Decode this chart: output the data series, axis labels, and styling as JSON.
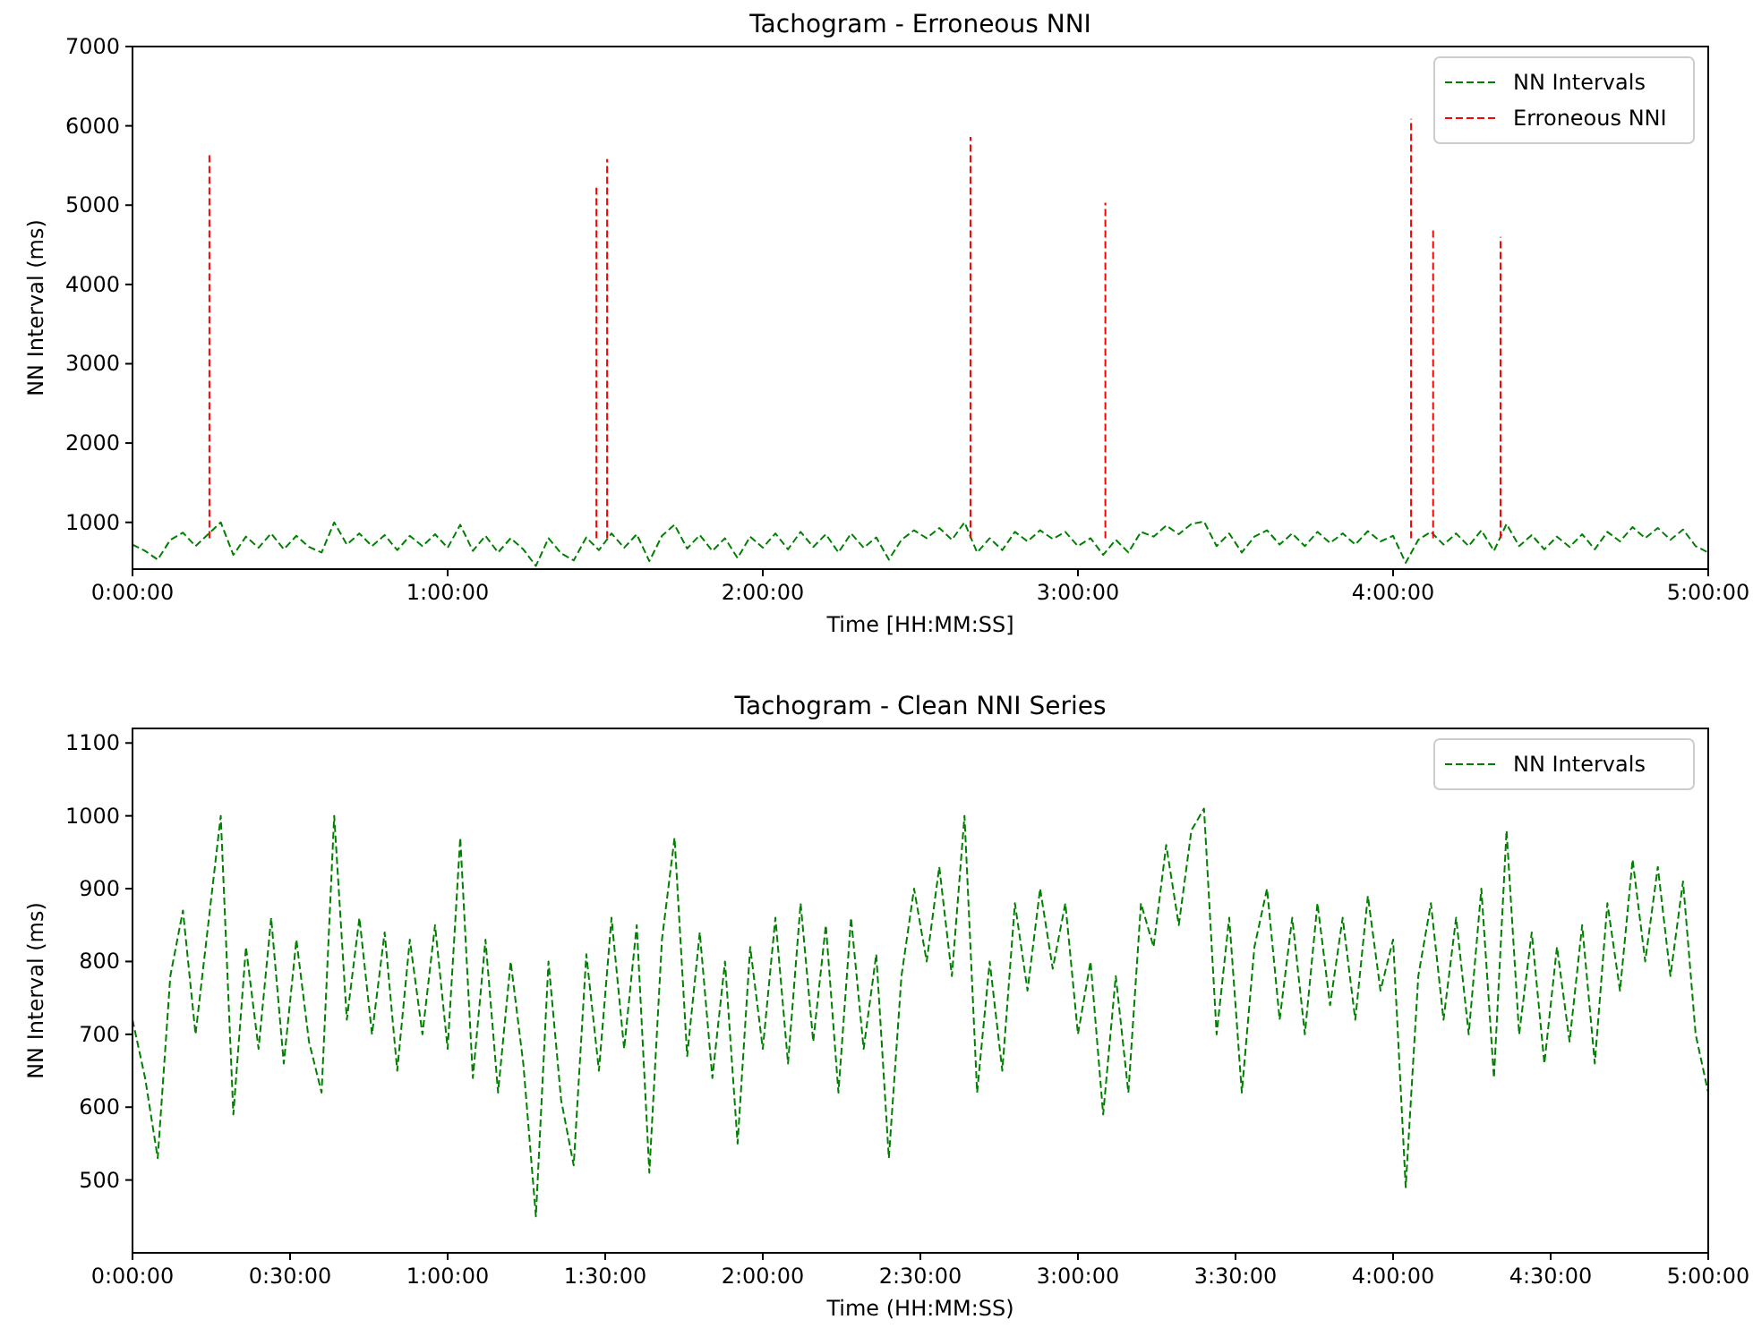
{
  "chart_data": [
    {
      "type": "line",
      "title": "Tachogram - Erroneous NNI",
      "xlabel": "Time [HH:MM:SS]",
      "ylabel": "NN Interval (ms)",
      "xlim": [
        0,
        5
      ],
      "xticks": [
        {
          "value": 0,
          "label": "0:00:00"
        },
        {
          "value": 1,
          "label": "1:00:00"
        },
        {
          "value": 2,
          "label": "2:00:00"
        },
        {
          "value": 3,
          "label": "3:00:00"
        },
        {
          "value": 4,
          "label": "4:00:00"
        },
        {
          "value": 5,
          "label": "5:00:00"
        }
      ],
      "ylim": [
        410,
        7000
      ],
      "yticks": [
        1000,
        2000,
        3000,
        4000,
        5000,
        6000,
        7000
      ],
      "grid": false,
      "legend": "top right",
      "line_style": "dashed",
      "x": [
        0,
        0.04,
        0.08,
        0.12,
        0.16,
        0.2,
        0.24,
        0.28,
        0.32,
        0.36,
        0.4,
        0.44,
        0.48,
        0.52,
        0.56,
        0.6,
        0.64,
        0.68,
        0.72,
        0.76,
        0.8,
        0.84,
        0.88,
        0.92,
        0.96,
        1,
        1.04,
        1.08,
        1.12,
        1.16,
        1.2,
        1.24,
        1.28,
        1.32,
        1.36,
        1.4,
        1.44,
        1.48,
        1.52,
        1.56,
        1.6,
        1.64,
        1.68,
        1.72,
        1.76,
        1.8,
        1.84,
        1.88,
        1.92,
        1.96,
        2,
        2.04,
        2.08,
        2.12,
        2.16,
        2.2,
        2.24,
        2.28,
        2.32,
        2.36,
        2.4,
        2.44,
        2.48,
        2.52,
        2.56,
        2.6,
        2.64,
        2.68,
        2.72,
        2.76,
        2.8,
        2.84,
        2.88,
        2.92,
        2.96,
        3,
        3.04,
        3.08,
        3.12,
        3.16,
        3.2,
        3.24,
        3.28,
        3.32,
        3.36,
        3.4,
        3.44,
        3.48,
        3.52,
        3.56,
        3.6,
        3.64,
        3.68,
        3.72,
        3.76,
        3.8,
        3.84,
        3.88,
        3.92,
        3.96,
        4,
        4.04,
        4.08,
        4.12,
        4.16,
        4.2,
        4.24,
        4.28,
        4.32,
        4.36,
        4.4,
        4.44,
        4.48,
        4.52,
        4.56,
        4.6,
        4.64,
        4.68,
        4.72,
        4.76,
        4.8,
        4.84,
        4.88,
        4.92,
        4.96,
        5
      ],
      "series": [
        {
          "name": "NN Intervals",
          "color": "#008000",
          "values": [
            720,
            640,
            530,
            780,
            870,
            700,
            850,
            1000,
            590,
            820,
            680,
            860,
            660,
            830,
            690,
            620,
            1000,
            720,
            860,
            700,
            840,
            650,
            830,
            700,
            850,
            680,
            970,
            640,
            830,
            620,
            800,
            660,
            450,
            800,
            610,
            520,
            810,
            650,
            860,
            680,
            850,
            510,
            830,
            970,
            670,
            840,
            640,
            800,
            550,
            820,
            680,
            860,
            660,
            880,
            690,
            850,
            620,
            860,
            680,
            810,
            530,
            780,
            900,
            800,
            930,
            780,
            1000,
            620,
            800,
            650,
            880,
            760,
            900,
            790,
            880,
            700,
            800,
            590,
            780,
            620,
            880,
            820,
            960,
            850,
            980,
            1010,
            700,
            860,
            620,
            820,
            900,
            720,
            860,
            700,
            880,
            740,
            860,
            720,
            890,
            760,
            830,
            490,
            780,
            880,
            720,
            860,
            700,
            900,
            640,
            980,
            700,
            840,
            660,
            820,
            690,
            850,
            660,
            880,
            760,
            940,
            800,
            930,
            780,
            910,
            700,
            620
          ]
        },
        {
          "name": "Erroneous NNI",
          "color": "#ff0000",
          "x": [
            0.244,
            0.244
          ],
          "values": [
            800,
            5670
          ]
        },
        {
          "color": "#ff0000",
          "x": [
            1.472,
            1.472
          ],
          "values": [
            800,
            5220
          ]
        },
        {
          "color": "#ff0000",
          "x": [
            1.506,
            1.506
          ],
          "values": [
            800,
            5580
          ]
        },
        {
          "color": "#ff0000",
          "x": [
            2.659,
            2.659
          ],
          "values": [
            800,
            5860
          ]
        },
        {
          "color": "#ff0000",
          "x": [
            3.087,
            3.087
          ],
          "values": [
            800,
            5030
          ]
        },
        {
          "color": "#ff0000",
          "x": [
            4.057,
            4.057
          ],
          "values": [
            800,
            6090
          ]
        },
        {
          "color": "#ff0000",
          "x": [
            4.127,
            4.127
          ],
          "values": [
            800,
            4720
          ]
        },
        {
          "color": "#ff0000",
          "x": [
            4.341,
            4.341
          ],
          "values": [
            800,
            4600
          ]
        }
      ]
    },
    {
      "type": "line",
      "title": "Tachogram - Clean NNI Series",
      "xlabel": "Time (HH:MM:SS)",
      "ylabel": "NN Interval (ms)",
      "xlim": [
        0,
        5
      ],
      "xticks": [
        {
          "value": 0,
          "label": "0:00:00"
        },
        {
          "value": 0.5,
          "label": "0:30:00"
        },
        {
          "value": 1,
          "label": "1:00:00"
        },
        {
          "value": 1.5,
          "label": "1:30:00"
        },
        {
          "value": 2,
          "label": "2:00:00"
        },
        {
          "value": 2.5,
          "label": "2:30:00"
        },
        {
          "value": 3,
          "label": "3:00:00"
        },
        {
          "value": 3.5,
          "label": "3:30:00"
        },
        {
          "value": 4,
          "label": "4:00:00"
        },
        {
          "value": 4.5,
          "label": "4:30:00"
        },
        {
          "value": 5,
          "label": "5:00:00"
        }
      ],
      "ylim": [
        400,
        1120
      ],
      "yticks": [
        500,
        600,
        700,
        800,
        900,
        1000,
        1100
      ],
      "grid": false,
      "legend": "top right",
      "line_style": "dashed",
      "x": [
        0,
        0.04,
        0.08,
        0.12,
        0.16,
        0.2,
        0.24,
        0.28,
        0.32,
        0.36,
        0.4,
        0.44,
        0.48,
        0.52,
        0.56,
        0.6,
        0.64,
        0.68,
        0.72,
        0.76,
        0.8,
        0.84,
        0.88,
        0.92,
        0.96,
        1,
        1.04,
        1.08,
        1.12,
        1.16,
        1.2,
        1.24,
        1.28,
        1.32,
        1.36,
        1.4,
        1.44,
        1.48,
        1.52,
        1.56,
        1.6,
        1.64,
        1.68,
        1.72,
        1.76,
        1.8,
        1.84,
        1.88,
        1.92,
        1.96,
        2,
        2.04,
        2.08,
        2.12,
        2.16,
        2.2,
        2.24,
        2.28,
        2.32,
        2.36,
        2.4,
        2.44,
        2.48,
        2.52,
        2.56,
        2.6,
        2.64,
        2.68,
        2.72,
        2.76,
        2.8,
        2.84,
        2.88,
        2.92,
        2.96,
        3,
        3.04,
        3.08,
        3.12,
        3.16,
        3.2,
        3.24,
        3.28,
        3.32,
        3.36,
        3.4,
        3.44,
        3.48,
        3.52,
        3.56,
        3.6,
        3.64,
        3.68,
        3.72,
        3.76,
        3.8,
        3.84,
        3.88,
        3.92,
        3.96,
        4,
        4.04,
        4.08,
        4.12,
        4.16,
        4.2,
        4.24,
        4.28,
        4.32,
        4.36,
        4.4,
        4.44,
        4.48,
        4.52,
        4.56,
        4.6,
        4.64,
        4.68,
        4.72,
        4.76,
        4.8,
        4.84,
        4.88,
        4.92,
        4.96,
        5
      ],
      "series": [
        {
          "name": "NN Intervals",
          "color": "#008000",
          "values": [
            720,
            640,
            530,
            780,
            870,
            700,
            850,
            1000,
            590,
            820,
            680,
            860,
            660,
            830,
            690,
            620,
            1000,
            720,
            860,
            700,
            840,
            650,
            830,
            700,
            850,
            680,
            970,
            640,
            830,
            620,
            800,
            660,
            450,
            800,
            610,
            520,
            810,
            650,
            860,
            680,
            850,
            510,
            830,
            970,
            670,
            840,
            640,
            800,
            550,
            820,
            680,
            860,
            660,
            880,
            690,
            850,
            620,
            860,
            680,
            810,
            530,
            780,
            900,
            800,
            930,
            780,
            1000,
            620,
            800,
            650,
            880,
            760,
            900,
            790,
            880,
            700,
            800,
            590,
            780,
            620,
            880,
            820,
            960,
            850,
            980,
            1010,
            700,
            860,
            620,
            820,
            900,
            720,
            860,
            700,
            880,
            740,
            860,
            720,
            890,
            760,
            830,
            490,
            780,
            880,
            720,
            860,
            700,
            900,
            640,
            980,
            700,
            840,
            660,
            820,
            690,
            850,
            660,
            880,
            760,
            940,
            800,
            930,
            780,
            910,
            700,
            620
          ]
        }
      ]
    }
  ]
}
